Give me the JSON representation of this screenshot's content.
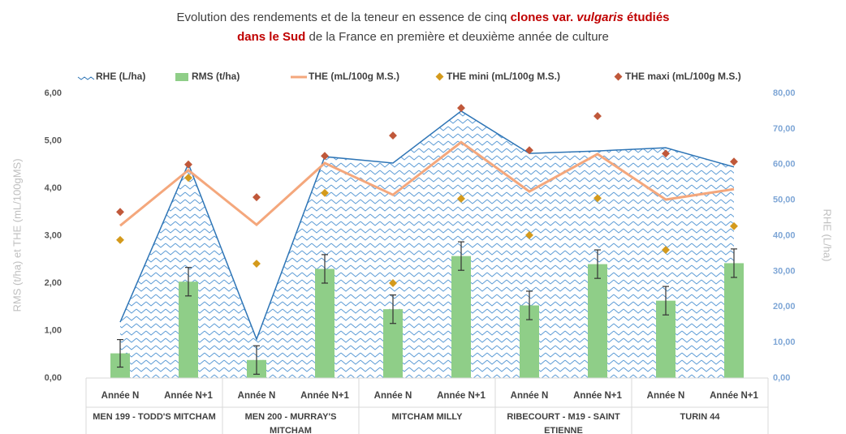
{
  "chart_data": {
    "type": "combo",
    "title_line1": [
      "Evolution des rendements et de la teneur en essence de cinq ",
      "clones var. ",
      "vulgaris",
      " étudiés"
    ],
    "title_line2": [
      "dans le Sud",
      " de la France en première et deuxième année de culture"
    ],
    "title_color": "#c00000",
    "ylabel": "RMS (t/ha) et THE (mL/100gMS)",
    "y2label": "RHE (L/ha)",
    "categories": [
      "Année N",
      "Année N+1",
      "Année N",
      "Année N+1",
      "Année N",
      "Année N+1",
      "Année N",
      "Année N+1",
      "Année N",
      "Année N+1"
    ],
    "groups": [
      "MEN 199 - TODD'S MITCHAM",
      "MEN 200 - MURRAY'S MITCHAM",
      "MITCHAM MILLY",
      "RIBECOURT - M19 - SAINT ETIENNE",
      "TURIN 44"
    ],
    "ylim": [
      0,
      6
    ],
    "yticks": [
      {
        "value": 0,
        "label": "0,00"
      },
      {
        "value": 1,
        "label": "1,00"
      },
      {
        "value": 2,
        "label": "2,00"
      },
      {
        "value": 3,
        "label": "3,00"
      },
      {
        "value": 4,
        "label": "4,00"
      },
      {
        "value": 5,
        "label": "5,00"
      },
      {
        "value": 6,
        "label": "6,00"
      }
    ],
    "y2lim": [
      0,
      80
    ],
    "y2ticks": [
      {
        "value": 0,
        "label": "0,00"
      },
      {
        "value": 10,
        "label": "10,00"
      },
      {
        "value": 20,
        "label": "20,00"
      },
      {
        "value": 30,
        "label": "30,00"
      },
      {
        "value": 40,
        "label": "40,00"
      },
      {
        "value": 50,
        "label": "50,00"
      },
      {
        "value": 60,
        "label": "60,00"
      },
      {
        "value": 70,
        "label": "70,00"
      },
      {
        "value": 80,
        "label": "80,00"
      }
    ],
    "series": [
      {
        "name": "RHE (L/ha)",
        "type": "area",
        "axis": "y2",
        "color": "#2e75b6",
        "values": [
          15.7,
          60.2,
          10.9,
          62.2,
          60.4,
          75.0,
          63.1,
          63.8,
          64.7,
          59.3
        ]
      },
      {
        "name": "RMS (t/ha)",
        "type": "bar",
        "color": "#8fce88",
        "values": [
          0.52,
          2.03,
          0.38,
          2.3,
          1.45,
          2.57,
          1.53,
          2.4,
          1.63,
          2.42
        ],
        "errors": [
          0.29,
          0.3,
          0.3,
          0.3,
          0.3,
          0.3,
          0.3,
          0.3,
          0.3,
          0.3
        ]
      },
      {
        "name": "THE (mL/100g M.S.)",
        "type": "line",
        "color": "#f4a77c",
        "values": [
          3.21,
          4.38,
          3.23,
          4.53,
          3.86,
          4.97,
          3.93,
          4.72,
          3.76,
          3.98
        ]
      },
      {
        "name": "THE mini (mL/100g M.S.)",
        "type": "scatter",
        "color": "#d49a1c",
        "values": [
          2.91,
          4.22,
          2.41,
          3.9,
          2.0,
          3.78,
          3.01,
          3.79,
          2.7,
          3.2
        ]
      },
      {
        "name": "THE maxi (mL/100g M.S.)",
        "type": "scatter",
        "color": "#c0583a",
        "values": [
          3.5,
          4.5,
          3.81,
          4.68,
          5.11,
          5.69,
          4.8,
          5.52,
          4.73,
          4.56
        ]
      }
    ]
  }
}
